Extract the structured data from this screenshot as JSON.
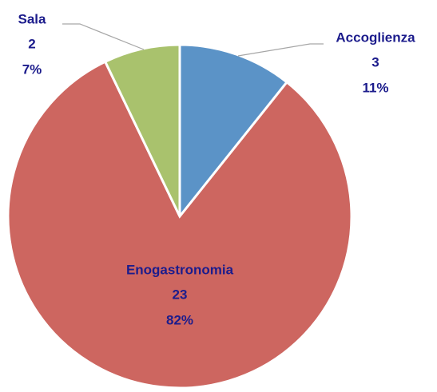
{
  "chart_data": {
    "type": "pie",
    "categories": [
      "Accoglienza",
      "Enogastronomia",
      "Sala"
    ],
    "values": [
      3,
      23,
      2
    ],
    "percent_labels": [
      "11%",
      "82%",
      "7%"
    ],
    "colors": [
      "#5b93c7",
      "#cd6660",
      "#a9c26d"
    ]
  }
}
